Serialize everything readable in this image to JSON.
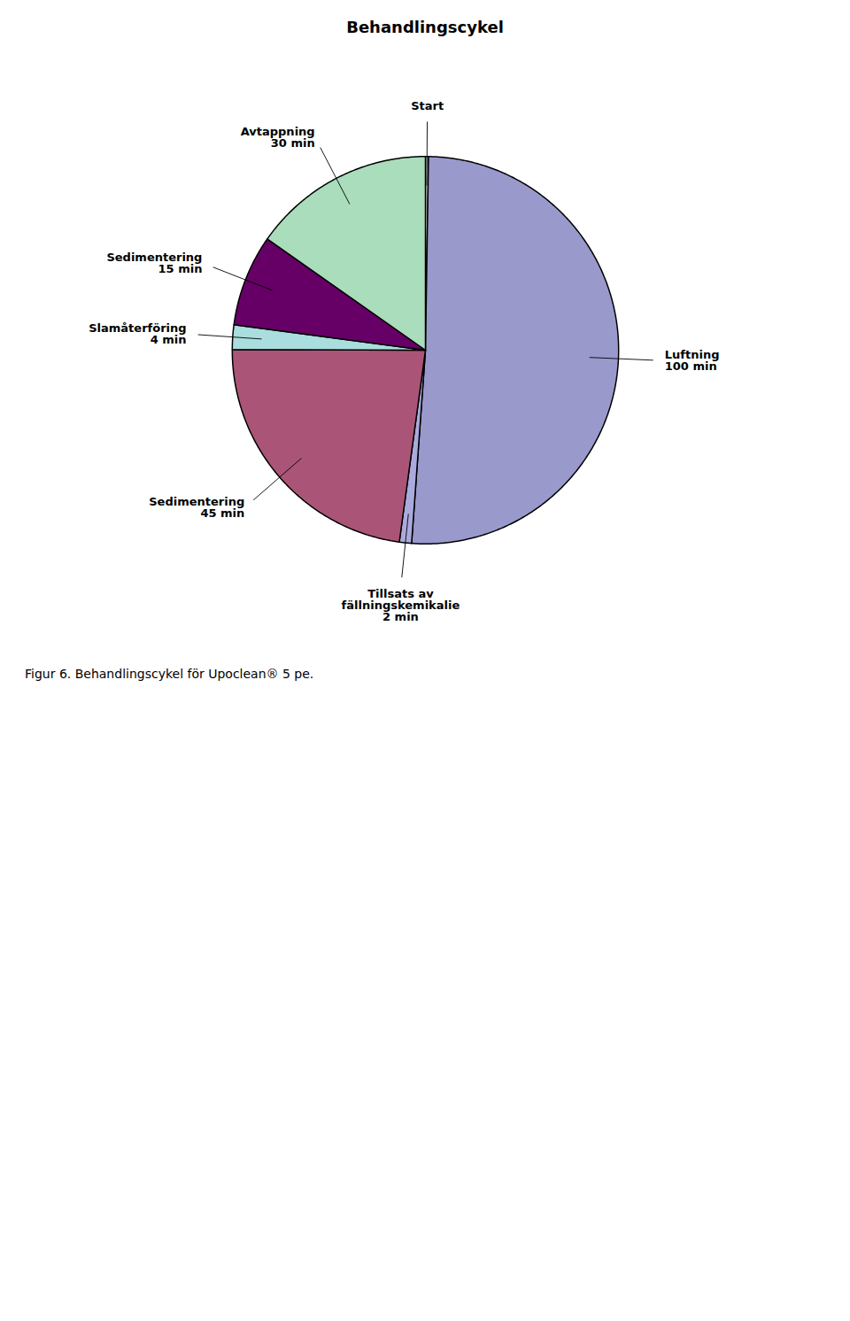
{
  "chart_data": {
    "type": "pie",
    "title": "Behandlingscykel",
    "caption": "Figur 6. Behandlingscykel för Upoclean® 5 pe.",
    "categories": [
      "Start",
      "Luftning\n100 min",
      "Tillsats av\nfällningskemikalie\n2 min",
      "Sedimentering\n45 min",
      "Slamåterföring\n4 min",
      "Sedimentering\n15 min",
      "Avtappning\n30 min"
    ],
    "values": [
      0.5,
      100,
      2,
      45,
      4,
      15,
      30
    ],
    "colors": [
      "#ffffff",
      "#9999cc",
      "#aaaadd",
      "#aa5577",
      "#aadddd",
      "#660066",
      "#aaddbb"
    ]
  }
}
